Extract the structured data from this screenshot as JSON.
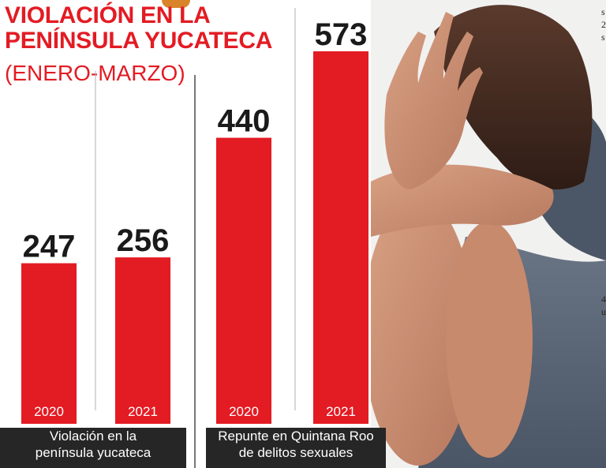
{
  "title": {
    "line1": "VIOLACIÓN EN LA",
    "line2": "PENÍNSULA YUCATECA",
    "subtitle": "(ENERO-MARZO)"
  },
  "colors": {
    "bar": "#e31b23",
    "title": "#e31b23",
    "caption_bg": "#262626",
    "divider": "#888888"
  },
  "chart_data": [
    {
      "type": "bar",
      "categories": [
        "2020",
        "2021"
      ],
      "values": [
        247,
        256
      ],
      "caption_lines": [
        "Violación en la",
        "península yucateca"
      ]
    },
    {
      "type": "bar",
      "categories": [
        "2020",
        "2021"
      ],
      "values": [
        440,
        573
      ],
      "caption_lines": [
        "Repunte en Quintana Roo",
        "de delitos sexuales"
      ]
    }
  ],
  "side_text": [
    "s",
    "2",
    "s",
    "4",
    "u"
  ]
}
